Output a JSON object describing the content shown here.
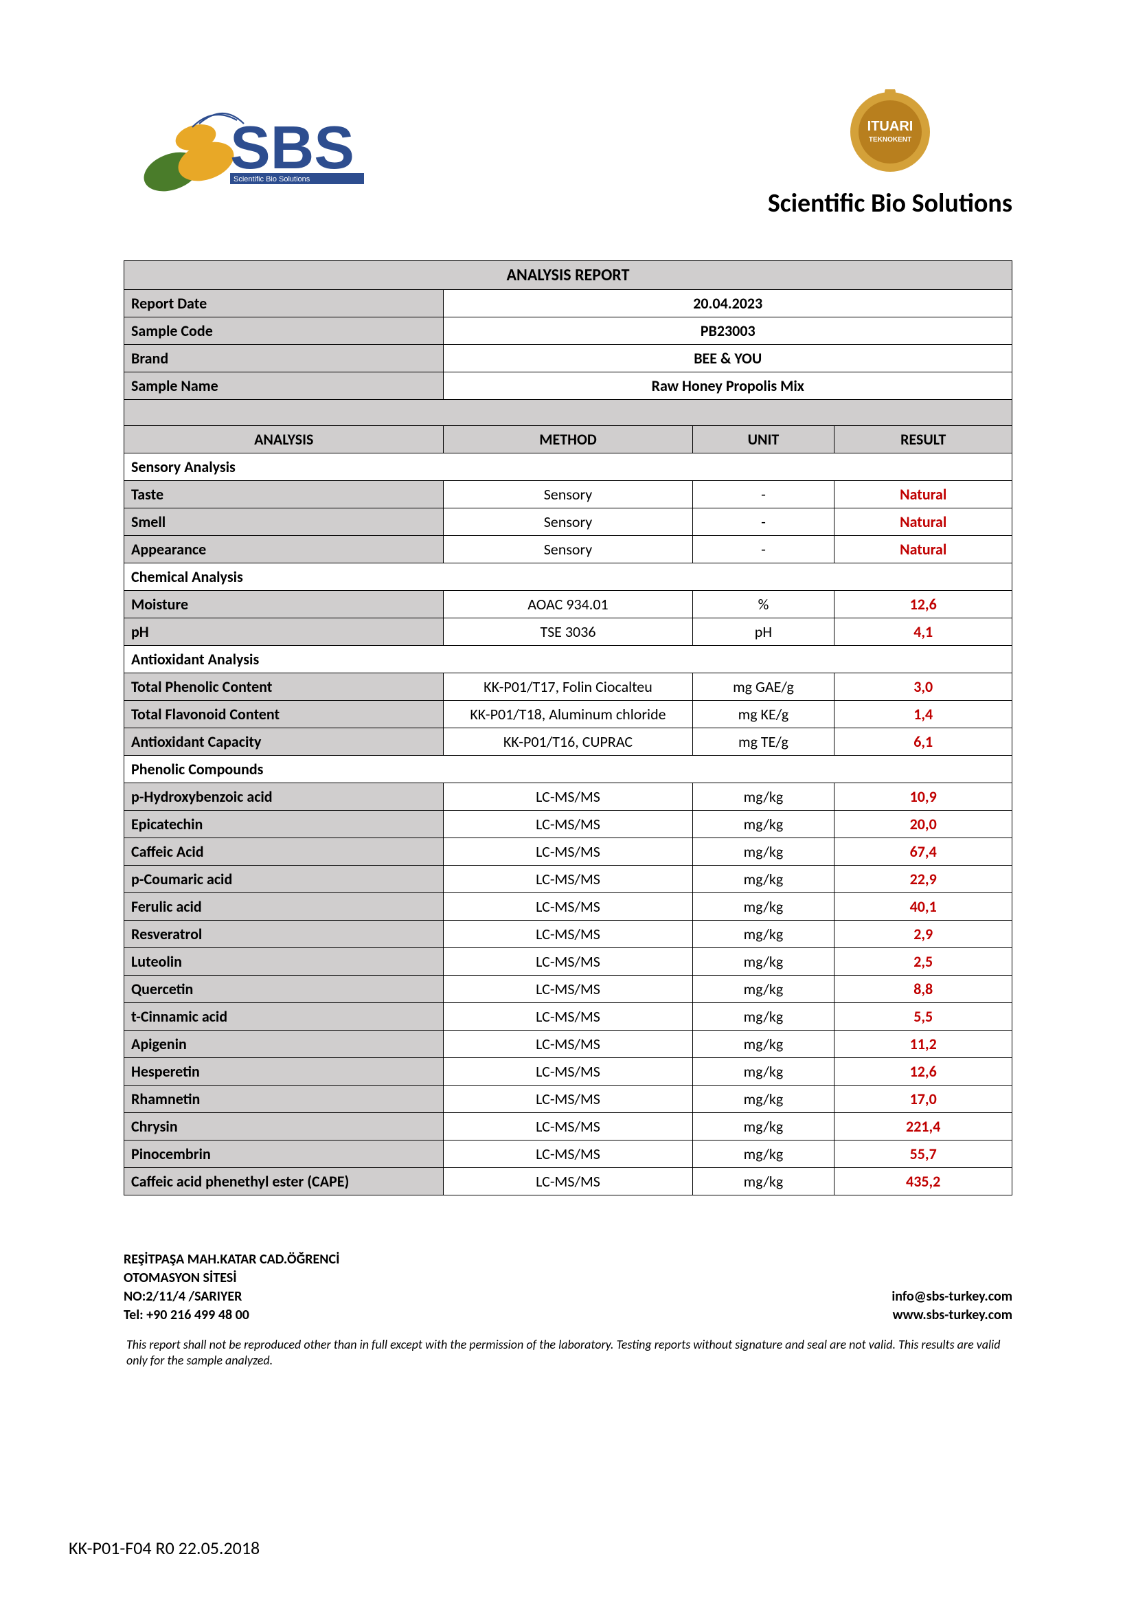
{
  "header": {
    "company_title": "Scientific Bio Solutions",
    "logo_text": "SBS",
    "logo_sub": "Scientific   Bio   Solutions",
    "badge_text": "ITUARI",
    "badge_sub": "TEKNOKENT"
  },
  "report": {
    "title": "ANALYSIS REPORT",
    "meta": [
      {
        "label": "Report Date",
        "value": "20.04.2023"
      },
      {
        "label": "Sample Code",
        "value": "PB23003"
      },
      {
        "label": "Brand",
        "value": "BEE & YOU"
      },
      {
        "label": "Sample Name",
        "value": "Raw Honey Propolis Mix"
      }
    ],
    "columns": {
      "analysis": "ANALYSIS",
      "method": "METHOD",
      "unit": "UNIT",
      "result": "RESULT"
    },
    "sections": [
      {
        "heading": "Sensory Analysis",
        "rows": [
          {
            "label": "Taste",
            "method": "Sensory",
            "unit": "-",
            "result": "Natural"
          },
          {
            "label": "Smell",
            "method": "Sensory",
            "unit": "-",
            "result": "Natural"
          },
          {
            "label": "Appearance",
            "method": "Sensory",
            "unit": "-",
            "result": "Natural"
          }
        ]
      },
      {
        "heading": "Chemical Analysis",
        "rows": [
          {
            "label": "Moisture",
            "method": "AOAC 934.01",
            "unit": "%",
            "result": "12,6"
          },
          {
            "label": "pH",
            "method": "TSE 3036",
            "unit": "pH",
            "result": "4,1"
          }
        ]
      },
      {
        "heading": "Antioxidant Analysis",
        "rows": [
          {
            "label": "Total Phenolic Content",
            "method": "KK-P01/T17, Folin Ciocalteu",
            "unit": "mg GAE/g",
            "result": "3,0"
          },
          {
            "label": "Total  Flavonoid Content",
            "method": "KK-P01/T18, Aluminum chloride",
            "unit": "mg KE/g",
            "result": "1,4"
          },
          {
            "label": "Antioxidant Capacity",
            "method": "KK-P01/T16, CUPRAC",
            "unit": "mg TE/g",
            "result": "6,1"
          }
        ]
      },
      {
        "heading": "Phenolic Compounds",
        "rows": [
          {
            "label": "p-Hydroxybenzoic acid",
            "method": "LC-MS/MS",
            "unit": "mg/kg",
            "result": "10,9"
          },
          {
            "label": "Epicatechin",
            "method": "LC-MS/MS",
            "unit": "mg/kg",
            "result": "20,0"
          },
          {
            "label": "Caffeic Acid",
            "method": "LC-MS/MS",
            "unit": "mg/kg",
            "result": "67,4"
          },
          {
            "label": "p-Coumaric acid",
            "method": "LC-MS/MS",
            "unit": "mg/kg",
            "result": "22,9"
          },
          {
            "label": "Ferulic acid",
            "method": "LC-MS/MS",
            "unit": "mg/kg",
            "result": "40,1"
          },
          {
            "label": "Resveratrol",
            "method": "LC-MS/MS",
            "unit": "mg/kg",
            "result": "2,9"
          },
          {
            "label": "Luteolin",
            "method": "LC-MS/MS",
            "unit": "mg/kg",
            "result": "2,5"
          },
          {
            "label": "Quercetin",
            "method": "LC-MS/MS",
            "unit": "mg/kg",
            "result": "8,8"
          },
          {
            "label": "t-Cinnamic acid",
            "method": "LC-MS/MS",
            "unit": "mg/kg",
            "result": "5,5"
          },
          {
            "label": "Apigenin",
            "method": "LC-MS/MS",
            "unit": "mg/kg",
            "result": "11,2"
          },
          {
            "label": "Hesperetin",
            "method": "LC-MS/MS",
            "unit": "mg/kg",
            "result": "12,6"
          },
          {
            "label": "Rhamnetin",
            "method": "LC-MS/MS",
            "unit": "mg/kg",
            "result": "17,0"
          },
          {
            "label": "Chrysin",
            "method": "LC-MS/MS",
            "unit": "mg/kg",
            "result": "221,4"
          },
          {
            "label": "Pinocembrin",
            "method": "LC-MS/MS",
            "unit": "mg/kg",
            "result": "55,7"
          },
          {
            "label": "Caffeic acid phenethyl ester (CAPE)",
            "method": "LC-MS/MS",
            "unit": "mg/kg",
            "result": "435,2"
          }
        ]
      }
    ]
  },
  "footer": {
    "address_line1": "REŞİTPAŞA MAH.KATAR CAD.ÖĞRENCİ",
    "address_line2": "OTOMASYON SİTESİ",
    "address_line3": "NO:2/11/4 /SARIYER",
    "tel": "Tel: +90 216 499 48 00",
    "email": "info@sbs-turkey.com",
    "website": "www.sbs-turkey.com",
    "disclaimer": "This report shall not be reproduced other than in full except with the permission of the laboratory. Testing reports without signature and seal are not valid. This results are valid only for the sample analyzed.",
    "doc_code": "KK-P01-F04 R0 22.05.2018"
  },
  "style": {
    "header_bg": "#d0cece",
    "result_color": "#c00000",
    "border_color": "#000000",
    "col_widths_pct": [
      36,
      28,
      16,
      20
    ]
  }
}
